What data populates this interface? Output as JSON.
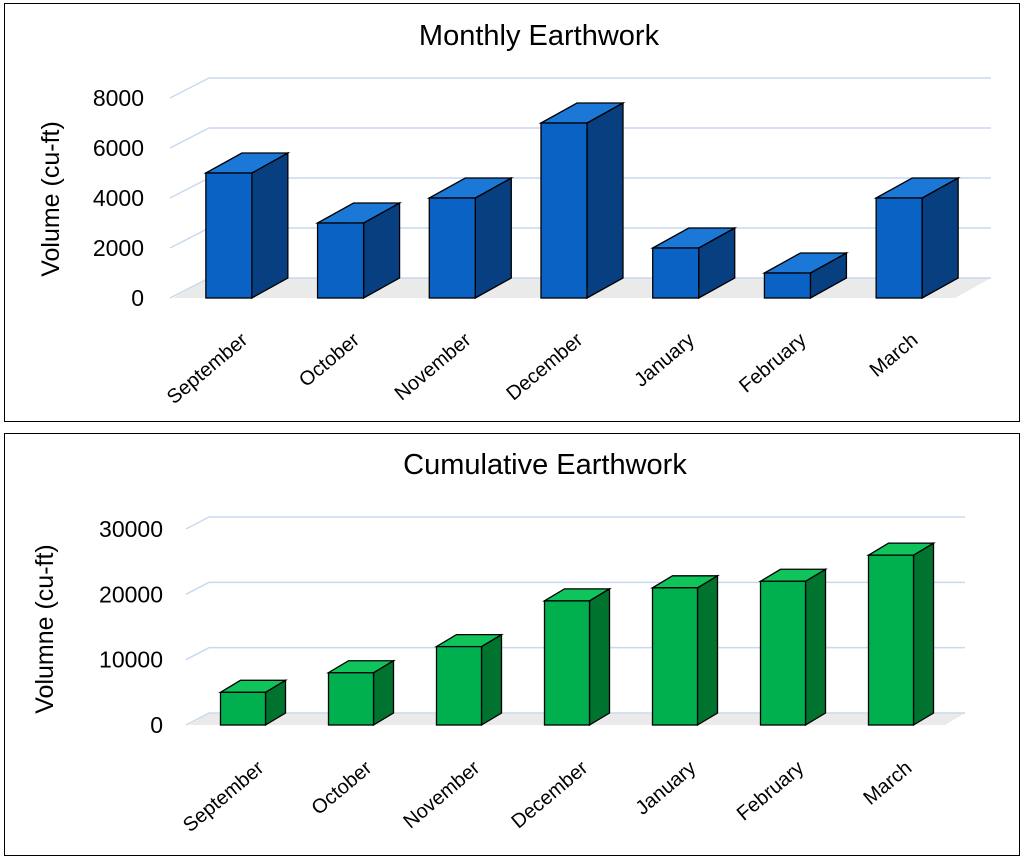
{
  "chart_data": [
    {
      "type": "bar",
      "title": "Monthly Earthwork",
      "ylabel": "Volume (cu-ft)",
      "xlabel": "",
      "categories": [
        "September",
        "October",
        "November",
        "December",
        "January",
        "February",
        "March"
      ],
      "values": [
        5000,
        3000,
        4000,
        7000,
        2000,
        1000,
        4000
      ],
      "ylim": [
        0,
        8000
      ],
      "yticks": [
        0,
        2000,
        4000,
        6000,
        8000
      ],
      "ytick_labels": [
        "0",
        "2000",
        "4000",
        "6000",
        "8000"
      ],
      "grid": true,
      "style": "3d-column",
      "colors": {
        "front": "#0a63c4",
        "top": "#1c78d6",
        "side": "#073f80",
        "grid": "#c9d9ef",
        "floor": "#d9d9d9"
      }
    },
    {
      "type": "bar",
      "title": "Cumulative Earthwork",
      "ylabel": "Volumne (cu-ft)",
      "xlabel": "",
      "categories": [
        "September",
        "October",
        "November",
        "December",
        "January",
        "February",
        "March"
      ],
      "values": [
        5000,
        8000,
        12000,
        19000,
        21000,
        22000,
        26000
      ],
      "ylim": [
        0,
        30000
      ],
      "yticks": [
        0,
        10000,
        20000,
        30000
      ],
      "ytick_labels": [
        "0",
        "10000",
        "20000",
        "30000"
      ],
      "grid": true,
      "style": "3d-column",
      "colors": {
        "front": "#00b04f",
        "top": "#10c45c",
        "side": "#00732f",
        "grid": "#c9d9ef",
        "floor": "#d9d9d9"
      }
    }
  ]
}
